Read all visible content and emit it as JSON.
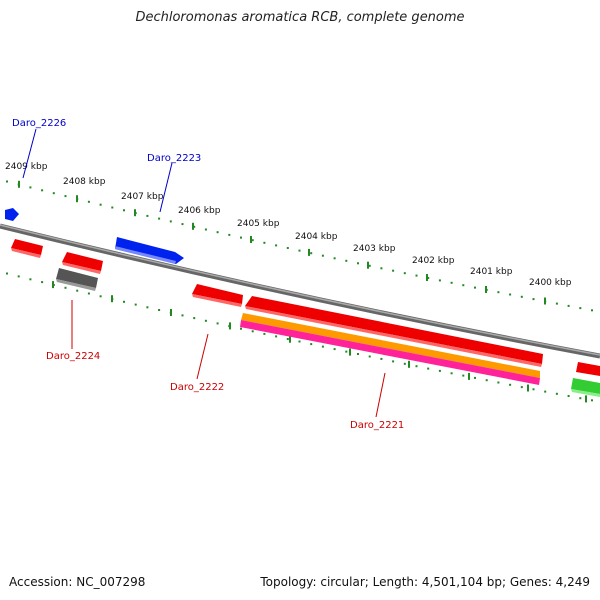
{
  "title": "Dechloromonas aromatica RCB, complete genome",
  "footer": {
    "accession": "Accession: NC_007298",
    "stats": "Topology: circular; Length: 4,501,104 bp; Genes: 4,249"
  },
  "scale": {
    "tick_labels": [
      "2409 kbp",
      "2408 kbp",
      "2407 kbp",
      "2406 kbp",
      "2405 kbp",
      "2404 kbp",
      "2403 kbp",
      "2402 kbp",
      "2401 kbp",
      "2400 kbp"
    ]
  },
  "gene_labels": {
    "daro_2226": "Daro_2226",
    "daro_2223": "Daro_2223",
    "daro_2224": "Daro_2224",
    "daro_2222": "Daro_2222",
    "daro_2221": "Daro_2221"
  },
  "colors": {
    "forward_strand_label": "#0000cc",
    "reverse_strand_label": "#cc0000",
    "cds_red": "#ee0000",
    "cds_blue": "#0022ee",
    "cds_gray": "#666666",
    "cds_orange": "#ff9900",
    "cds_pink": "#ff2299",
    "cds_green": "#33cc33",
    "backbone": "#888888",
    "tick_green": "#228822"
  }
}
